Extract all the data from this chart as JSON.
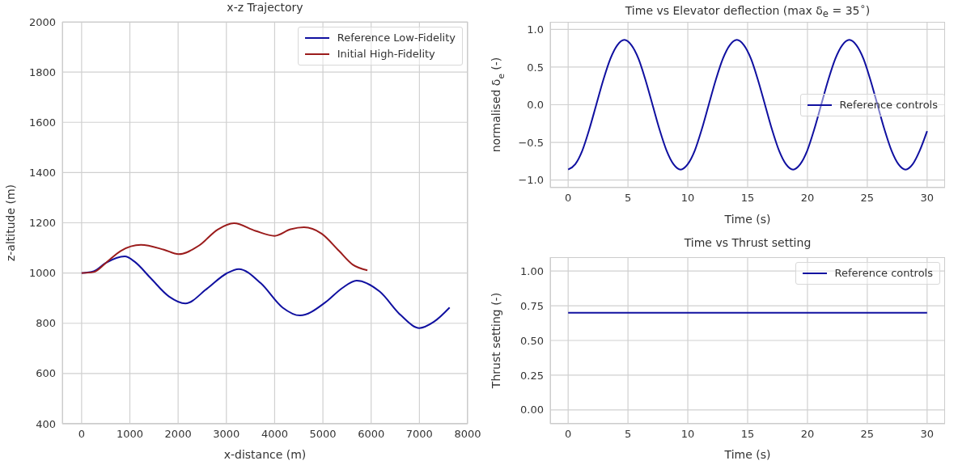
{
  "chart_data": [
    {
      "type": "line",
      "title": "x-z Trajectory",
      "xlabel": "x-distance (m)",
      "ylabel": "z-altitude (m)",
      "xlim": [
        -400,
        8000
      ],
      "xticks": [
        0,
        1000,
        2000,
        3000,
        4000,
        5000,
        6000,
        7000,
        8000
      ],
      "ylim": [
        400,
        2000
      ],
      "yticks": [
        400,
        600,
        800,
        1000,
        1200,
        1400,
        1600,
        1800,
        2000
      ],
      "grid": true,
      "legend": "top right",
      "series": [
        {
          "name": "Reference Low-Fidelity",
          "color": "#1010a0",
          "x": [
            0,
            250,
            500,
            894,
            1100,
            1425,
            1816,
            2150,
            2600,
            3000,
            3257,
            3715,
            4162,
            4525,
            5056,
            5400,
            5698,
            6173,
            6620,
            7000,
            7300,
            7626
          ],
          "values": [
            1000,
            1007,
            1040,
            1066,
            1045,
            981,
            906,
            879,
            938,
            998,
            1016,
            959,
            863,
            831,
            884,
            940,
            970,
            927,
            831,
            781,
            806,
            863
          ]
        },
        {
          "name": "Initial High-Fidelity",
          "color": "#9b1c1c",
          "x": [
            0,
            250,
            500,
            810,
            1229,
            1704,
            2011,
            2430,
            2821,
            3156,
            3603,
            4000,
            4330,
            4609,
            4972,
            5335,
            5615,
            5922
          ],
          "values": [
            1000,
            1004,
            1040,
            1088,
            1112,
            1093,
            1075,
            1109,
            1173,
            1198,
            1168,
            1148,
            1174,
            1182,
            1157,
            1088,
            1034,
            1011
          ]
        }
      ]
    },
    {
      "type": "line",
      "title": "Time vs Elevator deflection (max δ$_{e}$ = 35$^{∘}$)",
      "xlabel": "Time (s)",
      "ylabel": "normalised δ$_{e}$ (-)",
      "xlim": [
        -1.5,
        31.5
      ],
      "xticks": [
        0,
        5,
        10,
        15,
        20,
        25,
        30
      ],
      "ylim": [
        -1.1,
        1.1
      ],
      "yticks": [
        {
          "value": -1,
          "label": "−1.0"
        },
        {
          "value": -0.5,
          "label": "−0.5"
        },
        {
          "value": 0,
          "label": "0.0"
        },
        {
          "value": 0.5,
          "label": "0.5"
        },
        {
          "value": 1,
          "label": "1.0"
        }
      ],
      "grid": true,
      "legend": "right",
      "series": [
        {
          "name": "Reference controls",
          "color": "#1010a0",
          "x": [
            0,
            0.59,
            1.18,
            1.76,
            2.35,
            2.94,
            3.53,
            4.11,
            4.7,
            5.29,
            5.88,
            6.46,
            7.05,
            7.64,
            8.23,
            8.81,
            9.4,
            9.99,
            10.58,
            11.16,
            11.75,
            12.34,
            12.93,
            13.51,
            14.1,
            14.69,
            15.28,
            15.86,
            16.45,
            17.04,
            17.63,
            18.21,
            18.8,
            19.39,
            19.98,
            20.56,
            21.15,
            21.74,
            22.33,
            22.91,
            23.5,
            24.09,
            24.68,
            25.26,
            25.85,
            26.44,
            27.03,
            27.61,
            28.2,
            28.79,
            29.38,
            30
          ],
          "values": [
            -0.86,
            -0.79,
            -0.61,
            -0.33,
            0,
            0.33,
            0.61,
            0.79,
            0.86,
            0.79,
            0.61,
            0.33,
            0,
            -0.33,
            -0.61,
            -0.79,
            -0.86,
            -0.79,
            -0.61,
            -0.33,
            0,
            0.33,
            0.61,
            0.79,
            0.86,
            0.79,
            0.61,
            0.33,
            0,
            -0.33,
            -0.61,
            -0.79,
            -0.86,
            -0.79,
            -0.61,
            -0.33,
            0,
            0.33,
            0.61,
            0.79,
            0.86,
            0.79,
            0.61,
            0.33,
            0,
            -0.33,
            -0.61,
            -0.79,
            -0.86,
            -0.79,
            -0.61,
            -0.35
          ]
        }
      ]
    },
    {
      "type": "line",
      "title": "Time vs Thrust setting",
      "xlabel": "Time (s)",
      "ylabel": "Thrust setting (-)",
      "xlim": [
        -1.5,
        31.5
      ],
      "xticks": [
        0,
        5,
        10,
        15,
        20,
        25,
        30
      ],
      "ylim": [
        -0.1,
        1.1
      ],
      "yticks": [
        {
          "value": 0,
          "label": "0.00"
        },
        {
          "value": 0.25,
          "label": "0.25"
        },
        {
          "value": 0.5,
          "label": "0.50"
        },
        {
          "value": 0.75,
          "label": "0.75"
        },
        {
          "value": 1,
          "label": "1.00"
        }
      ],
      "grid": true,
      "legend": "top right",
      "series": [
        {
          "name": "Reference controls",
          "color": "#1010a0",
          "x": [
            0,
            30
          ],
          "values": [
            0.7,
            0.7
          ]
        }
      ]
    }
  ]
}
